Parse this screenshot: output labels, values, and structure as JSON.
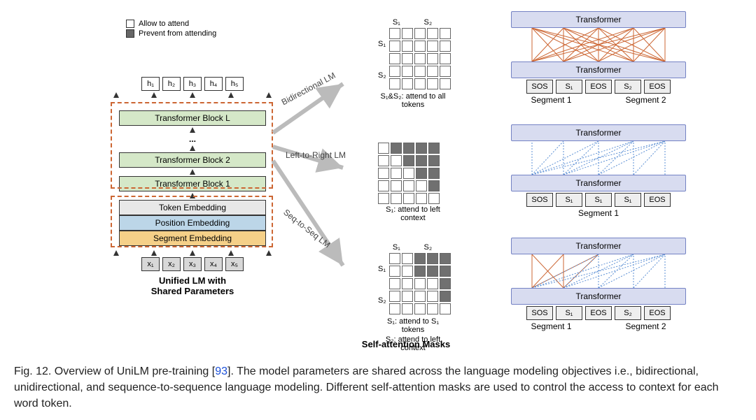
{
  "legend": {
    "allow": "Allow to attend",
    "prevent": "Prevent from attending"
  },
  "left": {
    "h_tokens": [
      "h₁",
      "h₂",
      "h₃",
      "h₄",
      "h₅"
    ],
    "x_tokens": [
      "x₁",
      "x₂",
      "x₃",
      "x₄",
      "x₅"
    ],
    "blocks": {
      "top": "Transformer Block L",
      "dots": "...",
      "b2": "Transformer Block 2",
      "b1": "Transformer Block 1",
      "tok": "Token Embedding",
      "pos": "Position Embedding",
      "seg": "Segment Embedding"
    },
    "colors": {
      "transformer": "#d5e8c8",
      "token": "#e8e8e8",
      "position": "#bcd6e8",
      "segment": "#f5d088"
    },
    "title1": "Unified LM with",
    "title2": "Shared Parameters"
  },
  "lm_labels": {
    "bidir": "Bidirectional LM",
    "l2r": "Left-to-Right LM",
    "s2s": "Seq-to-Seq LM"
  },
  "masks": {
    "bidir": {
      "top_labels": [
        "S₁",
        "S₂"
      ],
      "left_labels": [
        "S₁",
        "S₂"
      ],
      "caption": "S₁&S₂: attend to all tokens",
      "filled": []
    },
    "l2r": {
      "caption": "S₁: attend to left context",
      "filled": [
        1,
        2,
        3,
        4,
        7,
        8,
        9,
        13,
        14,
        19
      ]
    },
    "s2s": {
      "top_labels": [
        "S₁",
        "S₂"
      ],
      "left_labels": [
        "S₁",
        "S₂"
      ],
      "caption1": "S₁: attend to S₁ tokens",
      "caption2": "S₂: attend to left context",
      "filled": [
        2,
        3,
        4,
        7,
        8,
        9,
        14,
        19
      ]
    }
  },
  "right": {
    "tf": "Transformer",
    "tokens_bidir": [
      "SOS",
      "S₁",
      "EOS",
      "S₂",
      "EOS"
    ],
    "tokens_l2r": [
      "SOS",
      "S₁",
      "S₁",
      "S₁",
      "EOS"
    ],
    "tokens_s2s": [
      "SOS",
      "S₁",
      "EOS",
      "S₂",
      "EOS"
    ],
    "seg1": "Segment 1",
    "seg2": "Segment 2",
    "line_colors": {
      "bidir": "#cc6633",
      "l2r": "#5b8fd4",
      "mix1": "#cc6633",
      "mix2": "#5b8fd4"
    }
  },
  "bottom_title": "Self-attention Masks",
  "caption": {
    "prefix": "Fig. 12.  Overview of UniLM pre-training [",
    "ref": "93",
    "suffix": "]. The model parameters are shared across the language modeling objectives i.e., bidirectional, unidirectional, and sequence-to-sequence language modeling. Different self-attention masks are used to control the access to context for each word token."
  }
}
